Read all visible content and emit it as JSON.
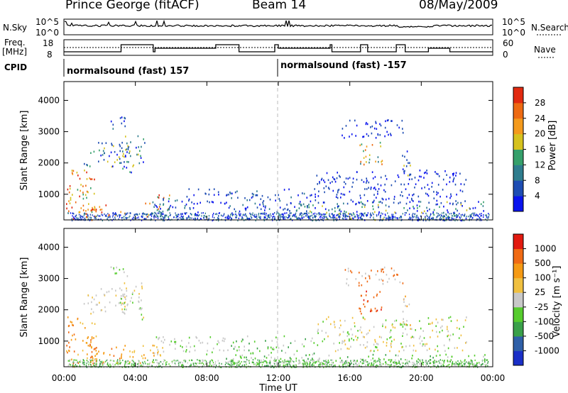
{
  "header": {
    "station": "Prince George (fitACF)",
    "beam": "Beam 14",
    "date": "08/May/2009"
  },
  "strips": {
    "nsky_label": "N.Sky",
    "nsky_ticks": [
      "10^5",
      "10^0"
    ],
    "nsearch_label": "N.Search",
    "nsearch_ticks": [
      "10^5",
      "10^0"
    ],
    "freq_label": "Freq.",
    "freq_unit": "[MHz]",
    "freq_ticks": [
      "18",
      "8"
    ],
    "nave_label": "Nave",
    "nave_ticks": [
      "60",
      "0"
    ],
    "cpid_label": "CPID",
    "cpid_segments": [
      {
        "start_hour": 0,
        "text": "normalsound (fast) 157"
      },
      {
        "start_hour": 12,
        "text": "normalsound (fast) -157"
      }
    ]
  },
  "chart_data": [
    {
      "type": "heatmap",
      "panel": "power",
      "ylabel": "Slant Range [km]",
      "xlabel": "Time UT",
      "x_ticks": [
        "00:00",
        "04:00",
        "08:00",
        "12:00",
        "16:00",
        "20:00",
        "00:00"
      ],
      "x_range_hours": [
        0,
        24
      ],
      "y_ticks": [
        1000,
        2000,
        3000,
        4000
      ],
      "ylim_km": [
        180,
        4600
      ],
      "colorbar": {
        "label": "Power [dB]",
        "ticks": [
          "4",
          "8",
          "12",
          "16",
          "20",
          "24",
          "28"
        ],
        "colors": [
          "#0a14ee",
          "#1e4db3",
          "#2f7d8e",
          "#36a06b",
          "#d6c21e",
          "#f49a1c",
          "#ee6a12",
          "#e22a10"
        ]
      },
      "regions": [
        {
          "t0": 0.1,
          "t1": 1.8,
          "r0": 200,
          "r1": 1800,
          "levels": [
            3,
            4,
            5,
            6,
            7
          ]
        },
        {
          "t0": 1.0,
          "t1": 3.4,
          "r0": 300,
          "r1": 700,
          "levels": [
            5,
            6,
            7
          ]
        },
        {
          "t0": 1.1,
          "t1": 3.6,
          "r0": 1900,
          "r1": 2700,
          "levels": [
            0,
            1,
            2,
            3,
            4
          ]
        },
        {
          "t0": 2.5,
          "t1": 3.6,
          "r0": 3100,
          "r1": 3500,
          "levels": [
            0,
            1,
            2
          ]
        },
        {
          "t0": 3.1,
          "t1": 4.5,
          "r0": 1700,
          "r1": 2900,
          "levels": [
            0,
            1,
            2,
            3,
            4
          ]
        },
        {
          "t0": 4.3,
          "t1": 5.9,
          "r0": 300,
          "r1": 1000,
          "levels": [
            2,
            3,
            4,
            5,
            6,
            7
          ]
        },
        {
          "t0": 5.0,
          "t1": 7.5,
          "r0": 300,
          "r1": 900,
          "levels": [
            0,
            1,
            2
          ]
        },
        {
          "t0": 6.8,
          "t1": 9.0,
          "r0": 700,
          "r1": 1200,
          "levels": [
            0,
            1
          ]
        },
        {
          "t0": 9.0,
          "t1": 14.0,
          "r0": 200,
          "r1": 1200,
          "levels": [
            0,
            1,
            2
          ]
        },
        {
          "t0": 13.0,
          "t1": 23.5,
          "r0": 200,
          "r1": 800,
          "levels": [
            0,
            1,
            2,
            3,
            4
          ]
        },
        {
          "t0": 14.0,
          "t1": 22.5,
          "r0": 700,
          "r1": 1800,
          "levels": [
            0,
            1
          ]
        },
        {
          "t0": 16.5,
          "t1": 17.8,
          "r0": 1900,
          "r1": 2700,
          "levels": [
            2,
            3,
            4,
            5,
            6
          ]
        },
        {
          "t0": 18.9,
          "t1": 19.4,
          "r0": 1500,
          "r1": 2500,
          "levels": [
            0,
            1,
            3,
            4
          ]
        },
        {
          "t0": 15.5,
          "t1": 19.0,
          "r0": 2800,
          "r1": 3400,
          "levels": [
            0,
            1
          ]
        }
      ]
    },
    {
      "type": "heatmap",
      "panel": "velocity",
      "ylabel": "Slant Range [km]",
      "xlabel": "Time UT",
      "x_ticks": [
        "00:00",
        "04:00",
        "08:00",
        "12:00",
        "16:00",
        "20:00",
        "00:00"
      ],
      "x_range_hours": [
        0,
        24
      ],
      "y_ticks": [
        1000,
        2000,
        3000,
        4000
      ],
      "ylim_km": [
        180,
        4600
      ],
      "colorbar": {
        "label": "Velocity [m s⁻¹]",
        "ticks": [
          "1000",
          "500",
          "100",
          "25",
          "-25",
          "-100",
          "-500",
          "-1000"
        ],
        "colors": [
          "#1a2fc7",
          "#2f60a8",
          "#3aa04a",
          "#56cc2e",
          "#c8c8c8",
          "#f0c040",
          "#f59a14",
          "#f06a14",
          "#e21a10"
        ]
      },
      "regions": [
        {
          "t0": 0.1,
          "t1": 1.8,
          "r0": 200,
          "r1": 1800,
          "levels": [
            5,
            6,
            6,
            7
          ]
        },
        {
          "t0": 1.0,
          "t1": 3.4,
          "r0": 300,
          "r1": 900,
          "levels": [
            6,
            7
          ]
        },
        {
          "t0": 1.1,
          "t1": 3.6,
          "r0": 1900,
          "r1": 2700,
          "levels": [
            4,
            4,
            4,
            5
          ]
        },
        {
          "t0": 2.5,
          "t1": 3.6,
          "r0": 3100,
          "r1": 3500,
          "levels": [
            4,
            3
          ]
        },
        {
          "t0": 3.1,
          "t1": 4.5,
          "r0": 1700,
          "r1": 2900,
          "levels": [
            4,
            4,
            5,
            3
          ]
        },
        {
          "t0": 3.6,
          "t1": 5.5,
          "r0": 300,
          "r1": 900,
          "levels": [
            5,
            6,
            5
          ]
        },
        {
          "t0": 5.0,
          "t1": 9.0,
          "r0": 600,
          "r1": 1200,
          "levels": [
            4,
            4,
            3
          ]
        },
        {
          "t0": 9.0,
          "t1": 14.0,
          "r0": 200,
          "r1": 1200,
          "levels": [
            4,
            3,
            2
          ]
        },
        {
          "t0": 12.5,
          "t1": 23.8,
          "r0": 200,
          "r1": 600,
          "levels": [
            3,
            2,
            3,
            4
          ]
        },
        {
          "t0": 14.0,
          "t1": 22.5,
          "r0": 700,
          "r1": 1800,
          "levels": [
            4,
            3,
            5
          ]
        },
        {
          "t0": 16.4,
          "t1": 17.8,
          "r0": 1900,
          "r1": 2700,
          "levels": [
            7,
            8,
            7
          ]
        },
        {
          "t0": 18.9,
          "t1": 19.4,
          "r0": 1500,
          "r1": 2500,
          "levels": [
            4,
            6
          ]
        },
        {
          "t0": 15.5,
          "t1": 19.0,
          "r0": 2800,
          "r1": 3400,
          "levels": [
            4,
            7
          ]
        }
      ]
    }
  ],
  "time_axis_label": "Time UT"
}
